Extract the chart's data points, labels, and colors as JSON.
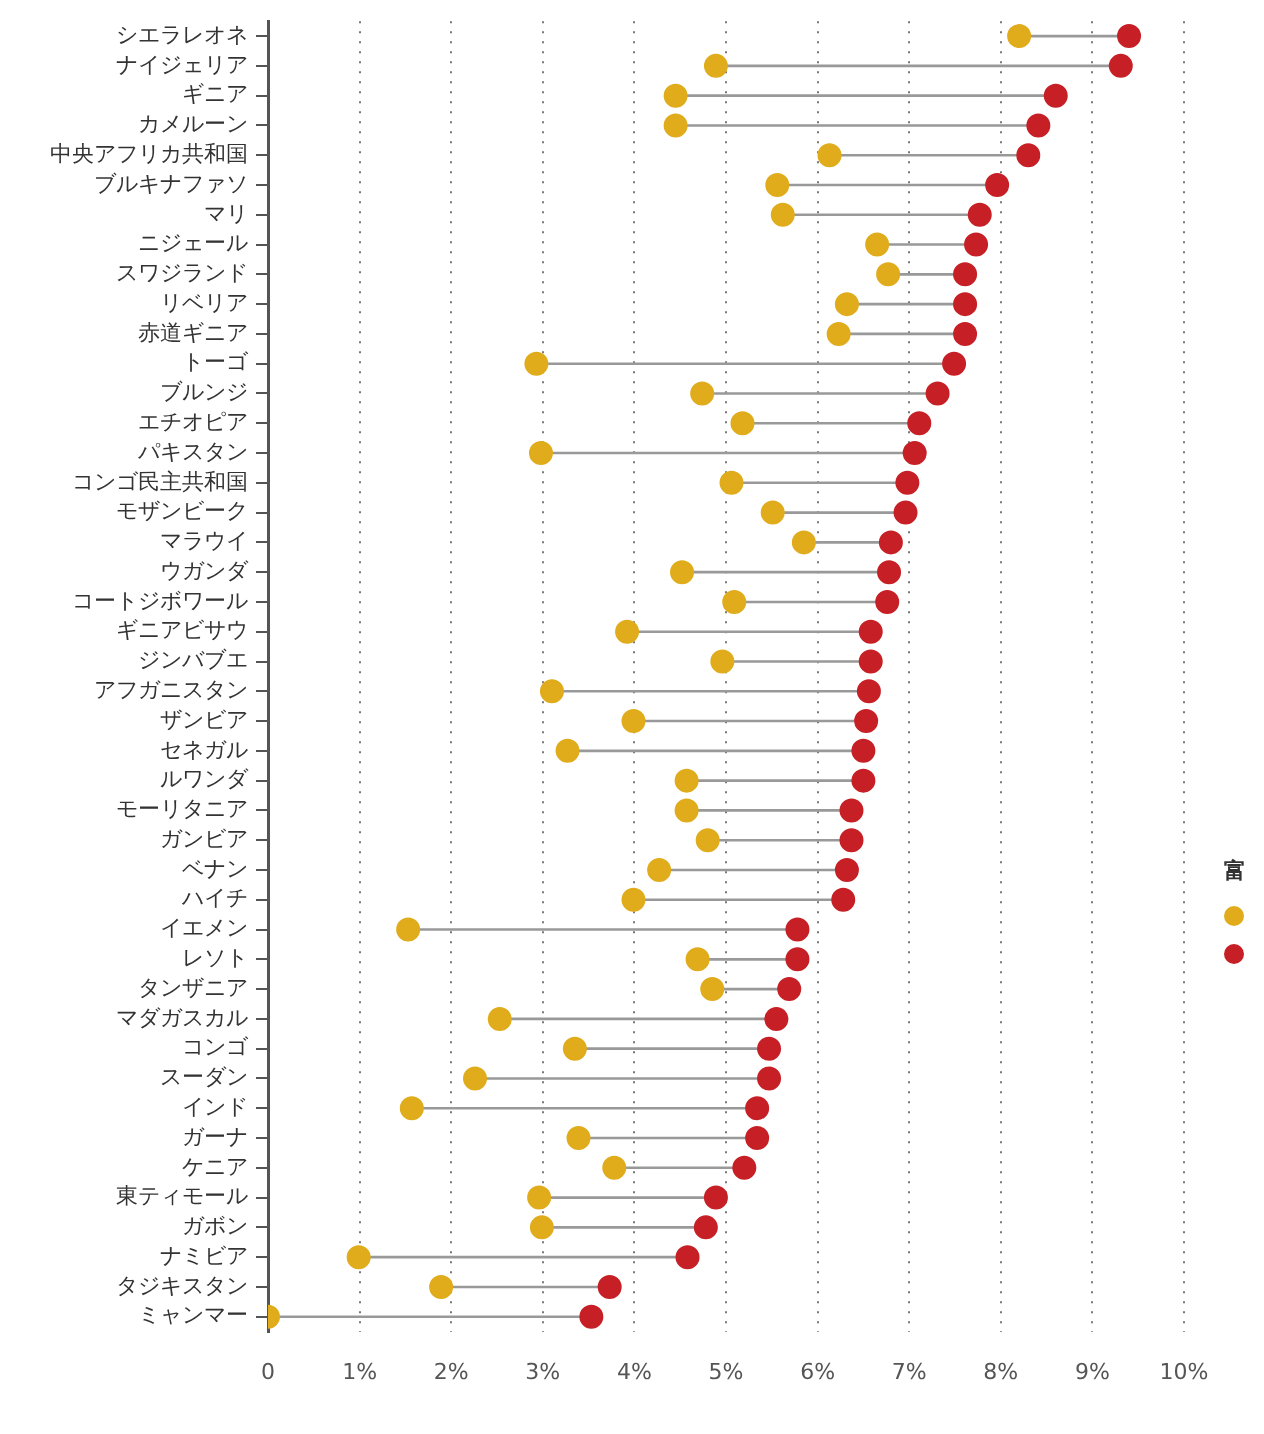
{
  "chart_data": {
    "type": "scatter",
    "orientation": "horizontal",
    "legend_title": "富",
    "grid": "x",
    "marker": "circle",
    "categories": [
      "シエラレオネ",
      "ナイジェリア",
      "ギニア",
      "カメルーン",
      "中央アフリカ共和国",
      "ブルキナファソ",
      "マリ",
      "ニジェール",
      "スワジランド",
      "リベリア",
      "赤道ギニア",
      "トーゴ",
      "ブルンジ",
      "エチオピア",
      "パキスタン",
      "コンゴ民主共和国",
      "モザンビーク",
      "マラウイ",
      "ウガンダ",
      "コートジボワール",
      "ギニアビサウ",
      "ジンバブエ",
      "アフガニスタン",
      "ザンビア",
      "セネガル",
      "ルワンダ",
      "モーリタニア",
      "ガンビア",
      "ベナン",
      "ハイチ",
      "イエメン",
      "レソト",
      "タンザニア",
      "マダガスカル",
      "コンゴ",
      "スーダン",
      "インド",
      "ガーナ",
      "ケニア",
      "東ティモール",
      "ガボン",
      "ナミビア",
      "タジキスタン",
      "ミャンマー"
    ],
    "series": [
      {
        "color": "#e0ac1c",
        "values": [
          8.2,
          4.89,
          4.45,
          4.45,
          6.13,
          5.56,
          5.62,
          6.65,
          6.77,
          6.32,
          6.23,
          2.93,
          4.74,
          5.18,
          2.98,
          5.06,
          5.51,
          5.85,
          4.52,
          5.09,
          3.92,
          4.96,
          3.1,
          3.99,
          3.27,
          4.57,
          4.57,
          4.8,
          4.27,
          3.99,
          1.53,
          4.69,
          4.85,
          2.53,
          3.35,
          2.26,
          1.57,
          3.39,
          3.78,
          2.96,
          2.99,
          0.99,
          1.89,
          0
        ]
      },
      {
        "color": "#c62026",
        "values": [
          9.4,
          9.31,
          8.6,
          8.41,
          8.3,
          7.96,
          7.77,
          7.73,
          7.61,
          7.61,
          7.61,
          7.49,
          7.31,
          7.11,
          7.06,
          6.98,
          6.96,
          6.8,
          6.78,
          6.76,
          6.58,
          6.58,
          6.56,
          6.53,
          6.5,
          6.5,
          6.37,
          6.37,
          6.32,
          6.28,
          5.78,
          5.78,
          5.69,
          5.55,
          5.47,
          5.47,
          5.34,
          5.34,
          5.2,
          4.89,
          4.78,
          4.58,
          3.73,
          3.53
        ]
      }
    ],
    "xlim": [
      0,
      10
    ],
    "xticks": [
      0,
      {
        "value": 1,
        "label": "1%"
      },
      {
        "value": 2,
        "label": "2%"
      },
      {
        "value": 3,
        "label": "3%"
      },
      {
        "value": 4,
        "label": "4%"
      },
      {
        "value": 5,
        "label": "5%"
      },
      {
        "value": 6,
        "label": "6%"
      },
      {
        "value": 7,
        "label": "7%"
      },
      {
        "value": 8,
        "label": "8%"
      },
      {
        "value": 9,
        "label": "9%"
      },
      {
        "value": 10,
        "label": "10%"
      }
    ]
  }
}
